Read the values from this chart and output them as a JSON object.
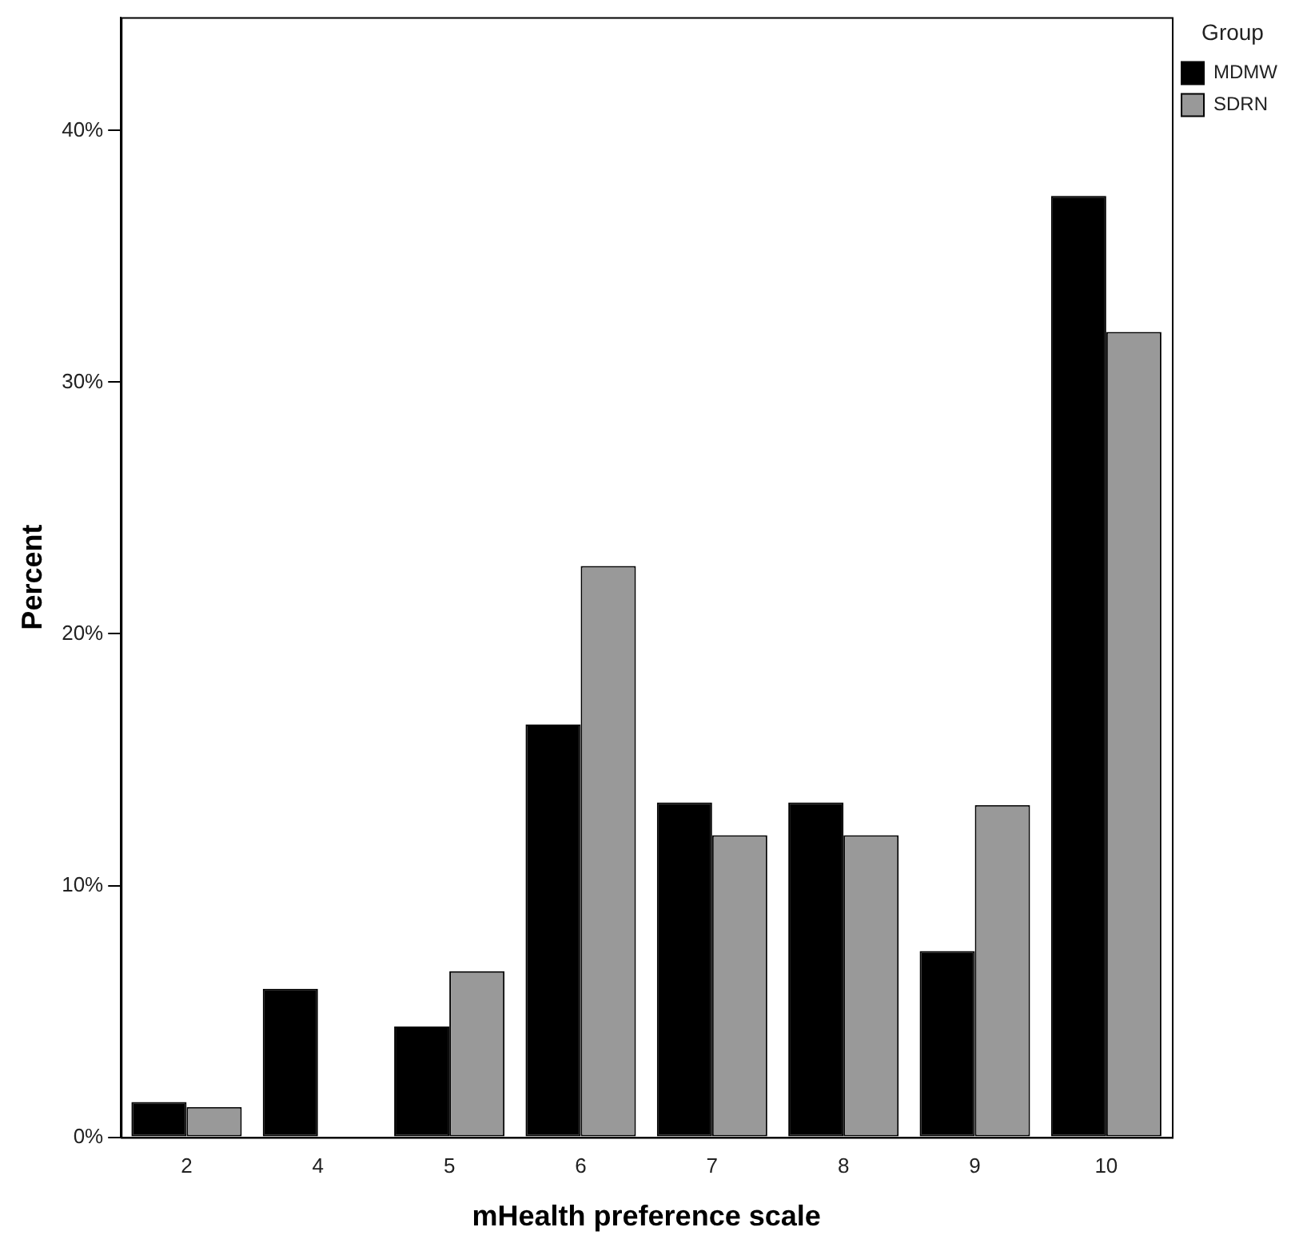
{
  "chart_data": {
    "type": "bar",
    "xlabel": "mHealth preference scale",
    "ylabel": "Percent",
    "legend_title": "Group",
    "legend": "top right",
    "grid": false,
    "categories": [
      "2",
      "4",
      "5",
      "6",
      "7",
      "8",
      "9",
      "10"
    ],
    "ylim": [
      0,
      44.5
    ],
    "yticks": [
      {
        "value": 0,
        "label": "0%"
      },
      {
        "value": 10,
        "label": "10%"
      },
      {
        "value": 20,
        "label": "20%"
      },
      {
        "value": 30,
        "label": "30%"
      },
      {
        "value": 40,
        "label": "40%"
      }
    ],
    "series": [
      {
        "name": "MDMW",
        "color": "#000000",
        "values": [
          1.4,
          5.9,
          4.4,
          16.4,
          13.3,
          13.3,
          7.4,
          37.4
        ]
      },
      {
        "name": "SDRN",
        "color": "#999999",
        "values": [
          1.2,
          0,
          6.6,
          22.7,
          12.0,
          12.0,
          13.2,
          32.0
        ]
      }
    ]
  }
}
